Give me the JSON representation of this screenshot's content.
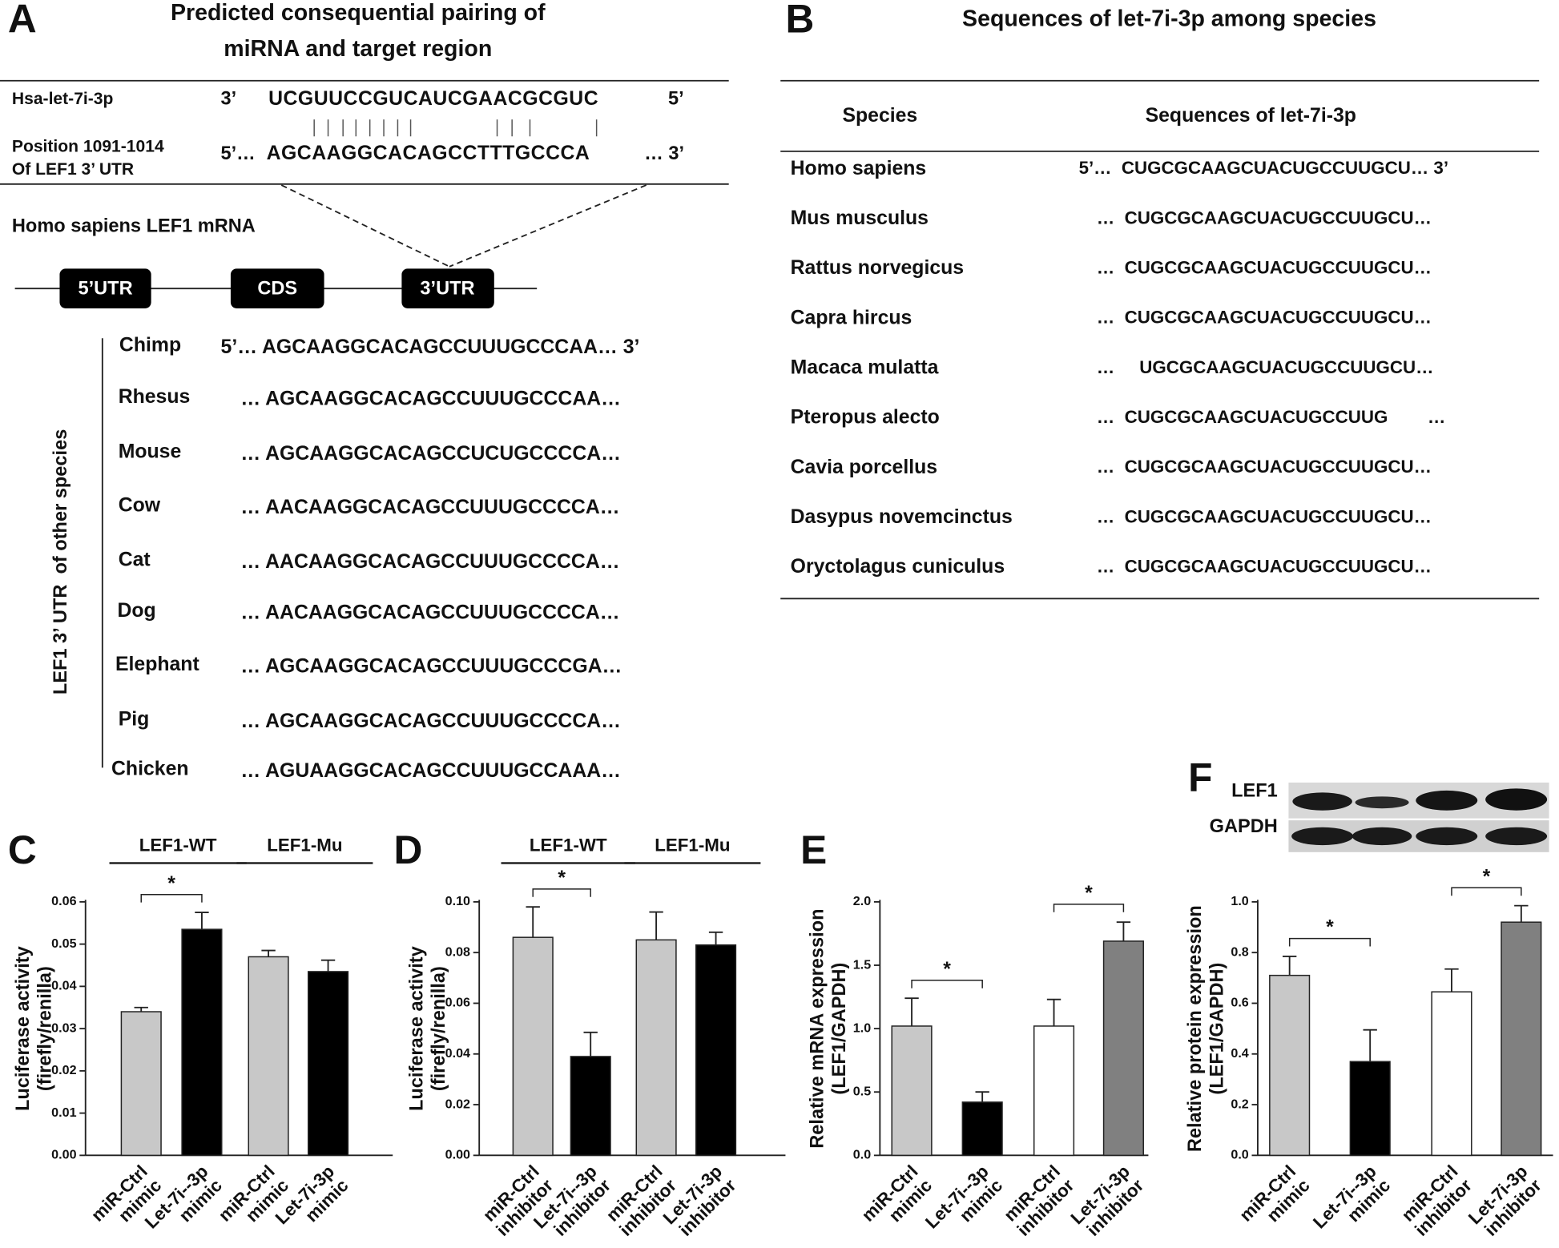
{
  "panel_a": {
    "letter": "A",
    "title": [
      "Predicted consequential pairing of",
      "miRNA and target region"
    ],
    "mirna": {
      "name": "Hsa-let-7i-3p",
      "left": "3’",
      "sequence": "UCGUUCCGUCAUCGAACGCGUC",
      "right": "5’"
    },
    "target": {
      "name": [
        "Position 1091-1014",
        "Of LEF1 3’ UTR"
      ],
      "left": "5’…",
      "sequence": "AGCAAGGCACAGCCTTTGCCCA",
      "right": "… 3’"
    },
    "mrna_title": "Homo sapiens LEF1 mRNA",
    "regions": [
      "5’UTR",
      "CDS",
      "3’UTR"
    ],
    "species_axis": "LEF1 3’ UTR  of other species",
    "species": [
      {
        "name": "Chimp",
        "sequence": "5’… AGCAAGGCACAGCCUUUGCCCAA… 3’"
      },
      {
        "name": "Rhesus",
        "sequence": "… AGCAAGGCACAGCCUUUGCCCAA…"
      },
      {
        "name": "Mouse",
        "sequence": "… AGCAAGGCACAGCCUCUGCCCCA…"
      },
      {
        "name": "Cow",
        "sequence": "… AACAAGGCACAGCCUUUGCCCCA…"
      },
      {
        "name": "Cat",
        "sequence": "… AACAAGGCACAGCCUUUGCCCCA…"
      },
      {
        "name": "Dog",
        "sequence": "… AACAAGGCACAGCCUUUGCCCCA…"
      },
      {
        "name": "Elephant",
        "sequence": "… AGCAAGGCACAGCCUUUGCCCGA…"
      },
      {
        "name": "Pig",
        "sequence": "… AGCAAGGCACAGCCUUUGCCCCA…"
      },
      {
        "name": "Chicken",
        "sequence": "… AGUAAGGCACAGCCUUUGCCAAA…"
      }
    ]
  },
  "panel_b": {
    "letter": "B",
    "title": "Sequences of let-7i-3p among species",
    "columns": [
      "Species",
      "Sequences of let-7i-3p"
    ],
    "rows": [
      [
        "Homo sapiens",
        "5’…  CUGCGCAAGCUACUGCCUUGCU… 3’"
      ],
      [
        "Mus musculus",
        "…  CUGCGCAAGCUACUGCCUUGCU…"
      ],
      [
        "Rattus norvegicus",
        "…  CUGCGCAAGCUACUGCCUUGCU…"
      ],
      [
        "Capra hircus",
        "…  CUGCGCAAGCUACUGCCUUGCU…"
      ],
      [
        "Macaca mulatta",
        "…     UGCGCAAGCUACUGCCUUGCU…"
      ],
      [
        "Pteropus alecto",
        "…  CUGCGCAAGCUACUGCCUUG        …"
      ],
      [
        "Cavia porcellus",
        "…  CUGCGCAAGCUACUGCCUUGCU…"
      ],
      [
        "Dasypus novemcinctus",
        "…  CUGCGCAAGCUACUGCCUUGCU…"
      ],
      [
        "Oryctolagus cuniculus",
        "…  CUGCGCAAGCUACUGCCUUGCU…"
      ]
    ]
  },
  "blot": {
    "labels": [
      "LEF1",
      "GAPDH"
    ]
  },
  "chart_data": [
    {
      "type": "bar",
      "panel": "C",
      "ylabel": [
        "Luciferase activity",
        "(firefly/renilla)"
      ],
      "categories": [
        [
          "miR-Ctrl",
          "mimic"
        ],
        [
          "Let-7i--3p",
          "mimic"
        ],
        [
          "miR-Ctrl",
          "mimic"
        ],
        [
          "Let-7i-3p",
          "mimic"
        ]
      ],
      "values": [
        0.034,
        0.0535,
        0.047,
        0.0435
      ],
      "errors": [
        0.001,
        0.004,
        0.0015,
        0.0027
      ],
      "colors": [
        "#c8c8c8",
        "#000000",
        "#c8c8c8",
        "#000000"
      ],
      "ylim": [
        0,
        0.06
      ],
      "yticks": [
        {
          "value": 0,
          "label": "0.00"
        },
        {
          "value": 0.01,
          "label": "0.01"
        },
        {
          "value": 0.02,
          "label": "0.02"
        },
        {
          "value": 0.03,
          "label": "0.03"
        },
        {
          "value": 0.04,
          "label": "0.04"
        },
        {
          "value": 0.05,
          "label": "0.05"
        },
        {
          "value": 0.06,
          "label": "0.06"
        }
      ],
      "groups": [
        {
          "label": "LEF1-WT",
          "from": 0,
          "to": 1
        },
        {
          "label": "LEF1-Mu",
          "from": 2,
          "to": 3
        }
      ],
      "significance": [
        {
          "label": "*",
          "from": 0,
          "to": 1
        }
      ]
    },
    {
      "type": "bar",
      "panel": "D",
      "ylabel": [
        "Luciferase activity",
        "(firefly/renilla)"
      ],
      "categories": [
        [
          "miR-Ctrl",
          "inhibitor"
        ],
        [
          "Let-7i--3p",
          "inhibitor"
        ],
        [
          "miR-Ctrl",
          "inhibitor"
        ],
        [
          "Let-7i-3p",
          "inhibitor"
        ]
      ],
      "values": [
        0.086,
        0.039,
        0.085,
        0.083
      ],
      "errors": [
        0.012,
        0.0095,
        0.011,
        0.005
      ],
      "colors": [
        "#c8c8c8",
        "#000000",
        "#c8c8c8",
        "#000000"
      ],
      "ylim": [
        0,
        0.1
      ],
      "yticks": [
        {
          "value": 0,
          "label": "0.00"
        },
        {
          "value": 0.02,
          "label": "0.02"
        },
        {
          "value": 0.04,
          "label": "0.04"
        },
        {
          "value": 0.06,
          "label": "0.06"
        },
        {
          "value": 0.08,
          "label": "0.08"
        },
        {
          "value": 0.1,
          "label": "0.10"
        }
      ],
      "groups": [
        {
          "label": "LEF1-WT",
          "from": 0,
          "to": 1
        },
        {
          "label": "LEF1-Mu",
          "from": 2,
          "to": 3
        }
      ],
      "significance": [
        {
          "label": "*",
          "from": 0,
          "to": 1
        }
      ]
    },
    {
      "type": "bar",
      "panel": "E",
      "ylabel": [
        "Relative mRNA expression",
        "(LEF1/GAPDH)"
      ],
      "categories": [
        [
          "miR-Ctrl",
          "mimic"
        ],
        [
          "Let-7i--3p",
          "mimic"
        ],
        [
          "miR-Ctrl",
          "inhibitor"
        ],
        [
          "Let-7i-3p",
          "inhibitor"
        ]
      ],
      "values": [
        1.02,
        0.42,
        1.02,
        1.69
      ],
      "errors": [
        0.22,
        0.08,
        0.21,
        0.15
      ],
      "colors": [
        "#c8c8c8",
        "#000000",
        "#ffffff",
        "#808080"
      ],
      "ylim": [
        0,
        2
      ],
      "yticks": [
        {
          "value": 0,
          "label": "0.0"
        },
        {
          "value": 0.5,
          "label": "0.5"
        },
        {
          "value": 1,
          "label": "1.0"
        },
        {
          "value": 1.5,
          "label": "1.5"
        },
        {
          "value": 2,
          "label": "2.0"
        }
      ],
      "groups": [],
      "significance": [
        {
          "label": "*",
          "from": 0,
          "to": 1
        },
        {
          "label": "*",
          "from": 2,
          "to": 3
        }
      ]
    },
    {
      "type": "bar",
      "panel": "F",
      "ylabel": [
        "Relative protein expression",
        "(LEF1/GAPDH)"
      ],
      "categories": [
        [
          "miR-Ctrl",
          "mimic"
        ],
        [
          "Let-7i--3p",
          "mimic"
        ],
        [
          "miR-Ctrl",
          "inhibitor"
        ],
        [
          "Let-7i-3p",
          "inhibitor"
        ]
      ],
      "values": [
        0.71,
        0.37,
        0.645,
        0.92
      ],
      "errors": [
        0.075,
        0.125,
        0.09,
        0.065
      ],
      "colors": [
        "#c8c8c8",
        "#000000",
        "#ffffff",
        "#808080"
      ],
      "ylim": [
        0,
        1
      ],
      "yticks": [
        {
          "value": 0,
          "label": "0.0"
        },
        {
          "value": 0.2,
          "label": "0.2"
        },
        {
          "value": 0.4,
          "label": "0.4"
        },
        {
          "value": 0.6,
          "label": "0.6"
        },
        {
          "value": 0.8,
          "label": "0.8"
        },
        {
          "value": 1,
          "label": "1.0"
        }
      ],
      "groups": [],
      "significance": [
        {
          "label": "*",
          "from": 0,
          "to": 1
        },
        {
          "label": "*",
          "from": 2,
          "to": 3
        }
      ]
    }
  ]
}
